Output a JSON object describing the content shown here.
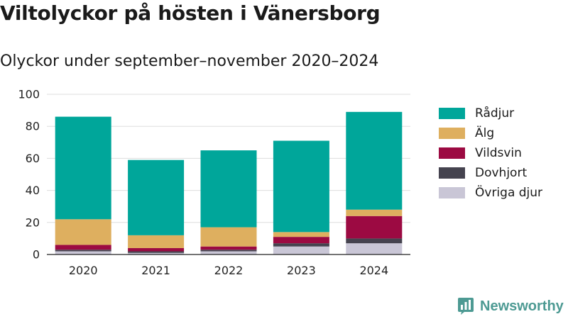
{
  "header": {
    "title": "Viltolyckor på hösten i Vänersborg",
    "subtitle": "Olyckor under september–november 2020–2024"
  },
  "brand": {
    "name": "Newsworthy",
    "icon": "bar-chart-icon",
    "color": "#4d9a93"
  },
  "chart_data": {
    "type": "bar",
    "stacked": true,
    "categories": [
      "2020",
      "2021",
      "2022",
      "2023",
      "2024"
    ],
    "series": [
      {
        "name": "Övriga djur",
        "color": "#c9c6d6",
        "values": [
          2,
          1,
          2,
          5,
          7
        ]
      },
      {
        "name": "Dovhjort",
        "color": "#45434f",
        "values": [
          1,
          1,
          1,
          2,
          3
        ]
      },
      {
        "name": "Vildsvin",
        "color": "#9c0a42",
        "values": [
          3,
          2,
          2,
          4,
          14
        ]
      },
      {
        "name": "Älg",
        "color": "#deaf5f",
        "values": [
          16,
          8,
          12,
          3,
          4
        ]
      },
      {
        "name": "Rådjur",
        "color": "#00a69a",
        "values": [
          64,
          47,
          48,
          57,
          61
        ]
      }
    ],
    "y_ticks": [
      "0",
      "20",
      "40",
      "60",
      "80",
      "100"
    ],
    "ylim": [
      0,
      100
    ],
    "grid": true,
    "legend_position": "right",
    "xlabel": "",
    "ylabel": ""
  },
  "legend": [
    {
      "label": "Rådjur",
      "color": "#00a69a"
    },
    {
      "label": "Älg",
      "color": "#deaf5f"
    },
    {
      "label": "Vildsvin",
      "color": "#9c0a42"
    },
    {
      "label": "Dovhjort",
      "color": "#45434f"
    },
    {
      "label": "Övriga djur",
      "color": "#c9c6d6"
    }
  ]
}
